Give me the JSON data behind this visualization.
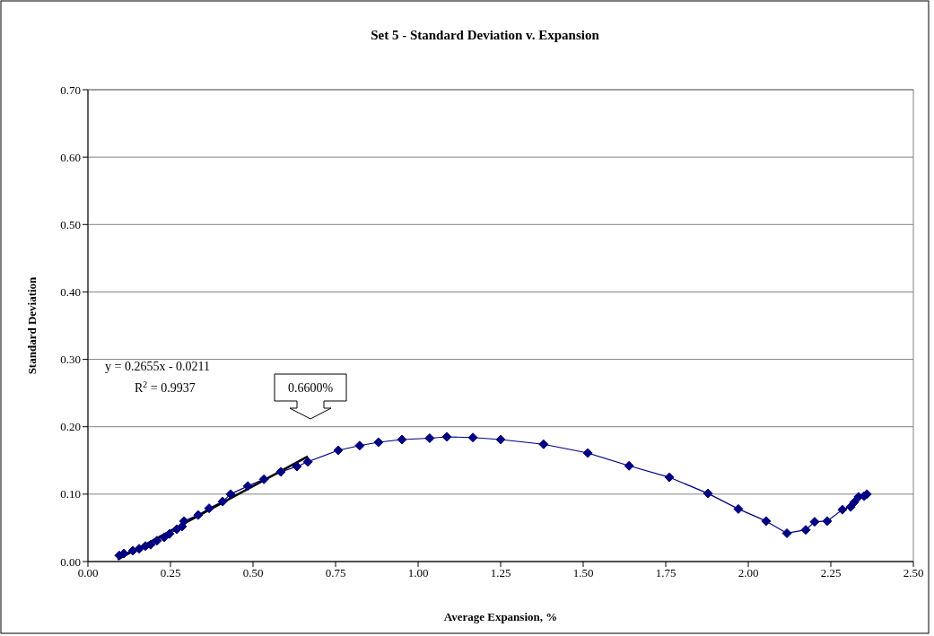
{
  "chart_data": {
    "type": "line",
    "title": "Set 5 - Standard Deviation v. Expansion",
    "xlabel": "Average Expansion, %",
    "ylabel": "Standard Deviation",
    "xlim": [
      0,
      2.5
    ],
    "xticks": [
      {
        "value": 0,
        "label": "0.00"
      },
      {
        "value": 0.25,
        "label": "0.25"
      },
      {
        "value": 0.5,
        "label": "0.50"
      },
      {
        "value": 0.75,
        "label": "0.75"
      },
      {
        "value": 1,
        "label": "1.00"
      },
      {
        "value": 1.25,
        "label": "1.25"
      },
      {
        "value": 1.5,
        "label": "1.50"
      },
      {
        "value": 1.75,
        "label": "1.75"
      },
      {
        "value": 2,
        "label": "2.00"
      },
      {
        "value": 2.25,
        "label": "2.25"
      },
      {
        "value": 2.5,
        "label": "2.50"
      }
    ],
    "ylim": [
      0,
      0.7
    ],
    "yticks": [
      {
        "value": 0,
        "label": "0.00"
      },
      {
        "value": 0.1,
        "label": "0.10"
      },
      {
        "value": 0.2,
        "label": "0.20"
      },
      {
        "value": 0.3,
        "label": "0.30"
      },
      {
        "value": 0.4,
        "label": "0.40"
      },
      {
        "value": 0.5,
        "label": "0.50"
      },
      {
        "value": 0.6,
        "label": "0.60"
      },
      {
        "value": 0.7,
        "label": "0.70"
      }
    ],
    "grid": "y",
    "marker": "diamond",
    "series": [
      {
        "color": "#000080",
        "x": [
          0.095,
          0.109,
          0.136,
          0.155,
          0.174,
          0.19,
          0.209,
          0.231,
          0.247,
          0.269,
          0.285,
          0.291,
          0.334,
          0.367,
          0.408,
          0.432,
          0.484,
          0.533,
          0.584,
          0.633,
          0.666,
          0.758,
          0.823,
          0.88,
          0.951,
          1.035,
          1.087,
          1.166,
          1.25,
          1.38,
          1.514,
          1.639,
          1.761,
          1.878,
          1.97,
          2.054,
          2.117,
          2.174,
          2.201,
          2.239,
          2.285,
          2.31,
          2.321,
          2.334,
          2.351,
          2.359
        ],
        "values": [
          0.009,
          0.012,
          0.016,
          0.019,
          0.023,
          0.025,
          0.031,
          0.036,
          0.041,
          0.048,
          0.052,
          0.06,
          0.069,
          0.079,
          0.089,
          0.1,
          0.112,
          0.122,
          0.133,
          0.141,
          0.148,
          0.165,
          0.172,
          0.177,
          0.181,
          0.183,
          0.185,
          0.184,
          0.181,
          0.174,
          0.161,
          0.142,
          0.125,
          0.101,
          0.078,
          0.06,
          0.042,
          0.047,
          0.059,
          0.06,
          0.077,
          0.081,
          0.088,
          0.096,
          0.097,
          0.1
        ]
      },
      {
        "color": "#000000",
        "marker": "none",
        "x": [
          0.09,
          0.666
        ],
        "values": [
          0.003,
          0.156
        ]
      }
    ],
    "annotations": [
      "y = 0.2655x - 0.0211",
      "R$^{2}$ = 0.9937",
      "0.6600%"
    ]
  }
}
